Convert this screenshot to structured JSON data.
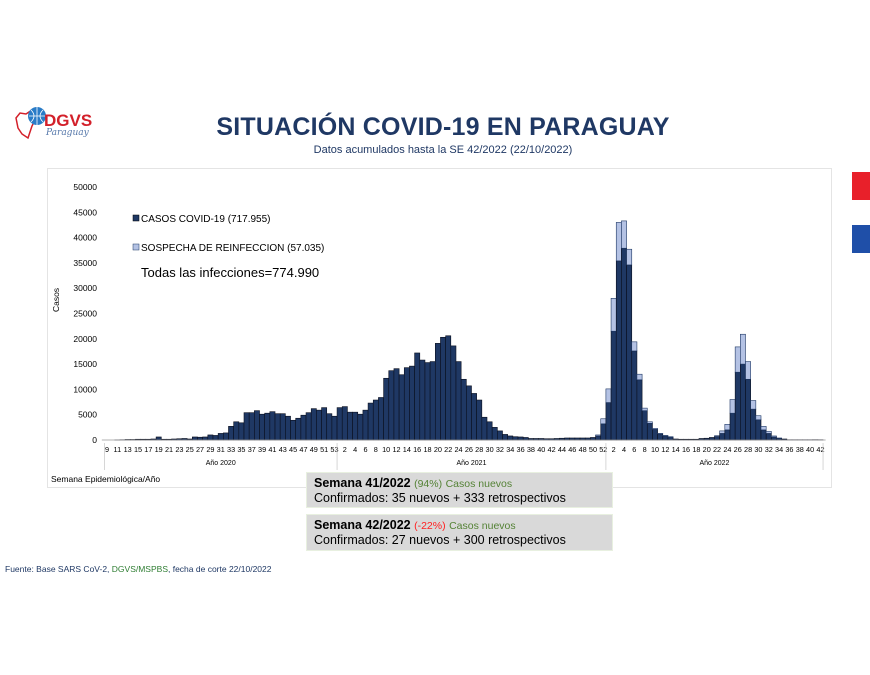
{
  "header": {
    "logo_text": "DGVS",
    "logo_subtext": "Paraguay",
    "title": "SITUACIÓN COVID-19 EN PARAGUAY",
    "subtitle": "Datos acumulados hasta la SE 42/2022 (22/10/2022)"
  },
  "side_marks": {
    "top_color": "#e8202a",
    "bottom_color": "#1f4fa8"
  },
  "chart_data": {
    "type": "bar",
    "stacked": true,
    "ylabel": "Casos",
    "xlabel": "Semana Epidemiológica/Año",
    "ylim": [
      0,
      50000
    ],
    "yticks": [
      0,
      5000,
      10000,
      15000,
      20000,
      25000,
      30000,
      35000,
      40000,
      45000,
      50000
    ],
    "grid": false,
    "legend_position": "top-left",
    "annotation": "Todas las infecciones=774.990",
    "years": [
      {
        "label": "Año 2020",
        "first_week": 9,
        "last_week": 53,
        "tick_labels": [
          "9",
          "11",
          "13",
          "15",
          "17",
          "19",
          "21",
          "23",
          "25",
          "27",
          "29",
          "31",
          "33",
          "35",
          "37",
          "39",
          "41",
          "43",
          "45",
          "47",
          "49",
          "51",
          "53"
        ]
      },
      {
        "label": "Año 2021",
        "first_week": 1,
        "last_week": 52,
        "tick_labels": [
          "2",
          "4",
          "6",
          "8",
          "10",
          "12",
          "14",
          "16",
          "18",
          "20",
          "22",
          "24",
          "26",
          "28",
          "30",
          "32",
          "34",
          "36",
          "38",
          "40",
          "42",
          "44",
          "46",
          "48",
          "50",
          "52"
        ]
      },
      {
        "label": "Año 2022",
        "first_week": 1,
        "last_week": 42,
        "tick_labels": [
          "2",
          "4",
          "6",
          "8",
          "10",
          "12",
          "14",
          "16",
          "18",
          "20",
          "22",
          "24",
          "26",
          "28",
          "30",
          "32",
          "34",
          "36",
          "38",
          "40",
          "42"
        ]
      }
    ],
    "series": [
      {
        "name": "CASOS COVID-19 (717.955)",
        "color": "#1f3864",
        "values": [
          0,
          0,
          10,
          50,
          100,
          100,
          150,
          150,
          150,
          200,
          600,
          150,
          150,
          200,
          250,
          300,
          200,
          600,
          550,
          600,
          1000,
          900,
          1300,
          1400,
          2700,
          3600,
          3400,
          5400,
          5400,
          5800,
          5100,
          5300,
          5600,
          5200,
          5200,
          4700,
          3900,
          4300,
          4900,
          5400,
          6200,
          5900,
          6400,
          5200,
          4700,
          6400,
          6600,
          5500,
          5500,
          5100,
          5900,
          7300,
          7900,
          8400,
          12200,
          13700,
          14100,
          12900,
          14300,
          14600,
          17200,
          15800,
          15300,
          15500,
          19100,
          20300,
          20600,
          18600,
          15500,
          12000,
          10700,
          9200,
          7900,
          4500,
          3600,
          2500,
          1800,
          1100,
          800,
          650,
          600,
          500,
          300,
          300,
          300,
          250,
          250,
          300,
          350,
          400,
          400,
          400,
          400,
          400,
          500,
          800,
          3200,
          7400,
          21500,
          35400,
          37900,
          34600,
          17600,
          11900,
          5800,
          3300,
          2100,
          1200,
          800,
          550,
          200,
          150,
          150,
          150,
          150,
          300,
          350,
          500,
          700,
          1300,
          2000,
          5300,
          13400,
          15000,
          12000,
          6100,
          4000,
          2000,
          1300,
          600,
          300,
          200,
          50,
          50,
          50,
          50,
          50,
          60,
          50
        ]
      },
      {
        "name": "SOSPECHA DE REINFECCION (57.035)",
        "color": "#b4c2e4",
        "values": [
          0,
          0,
          0,
          0,
          0,
          0,
          0,
          0,
          0,
          0,
          0,
          0,
          0,
          0,
          0,
          0,
          0,
          0,
          0,
          0,
          0,
          0,
          0,
          0,
          0,
          0,
          0,
          0,
          0,
          0,
          0,
          0,
          0,
          0,
          0,
          0,
          0,
          0,
          0,
          0,
          0,
          0,
          0,
          0,
          0,
          0,
          0,
          0,
          0,
          0,
          0,
          0,
          0,
          0,
          0,
          0,
          0,
          0,
          0,
          0,
          0,
          0,
          0,
          0,
          0,
          0,
          0,
          0,
          0,
          0,
          0,
          0,
          0,
          0,
          0,
          0,
          0,
          0,
          0,
          0,
          0,
          0,
          0,
          0,
          0,
          0,
          0,
          0,
          0,
          0,
          0,
          0,
          0,
          0,
          0,
          200,
          1000,
          2700,
          6500,
          7600,
          5400,
          3100,
          1800,
          1100,
          500,
          300,
          200,
          100,
          100,
          100,
          0,
          0,
          0,
          0,
          0,
          0,
          0,
          0,
          150,
          500,
          1100,
          2700,
          5000,
          5900,
          3500,
          1700,
          800,
          700,
          400,
          200,
          100,
          0,
          0,
          0,
          0,
          0,
          0,
          0,
          0
        ]
      }
    ]
  },
  "summary_boxes": [
    {
      "week": "Semana 41/2022",
      "pct": "(94%)",
      "trend": "up",
      "pct_suffix": "Casos nuevos",
      "detail": "Confirmados: 35 nuevos + 333 retrospectivos"
    },
    {
      "week": "Semana 42/2022",
      "pct": "(-22%)",
      "trend": "down",
      "pct_suffix": "Casos nuevos",
      "detail": "Confirmados: 27 nuevos + 300 retrospectivos"
    }
  ],
  "footer": {
    "prefix": "Fuente: Base SARS CoV-2, ",
    "source": "DGVS/MSPBS",
    "suffix": ", fecha de corte 22/10/2022"
  }
}
